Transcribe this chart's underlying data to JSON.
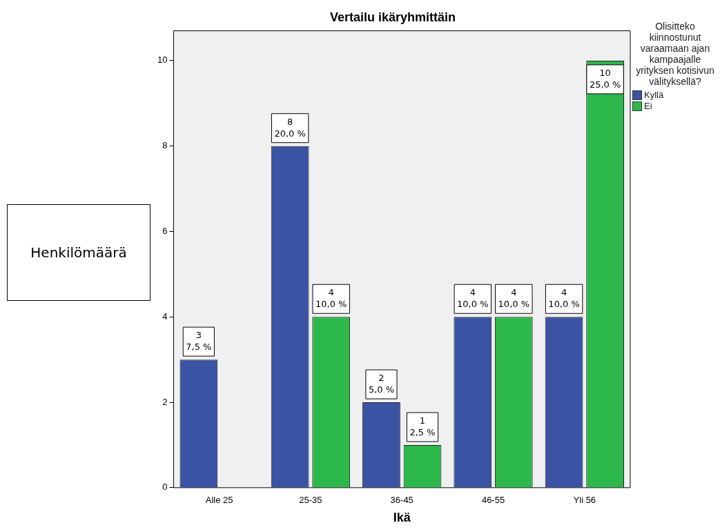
{
  "chart_data": {
    "type": "bar",
    "title": "Vertailu ikäryhmittäin",
    "xlabel": "Ikä",
    "ylabel": "Henkilömäärä",
    "legend_title": "Olisitteko kiinnostunut varaamaan ajan kampaajalle yrityksen kotisivun välityksellä?",
    "legend": "right",
    "grid": false,
    "categories": [
      "Alle 25",
      "25-35",
      "36-45",
      "46-55",
      "Yli 56"
    ],
    "ylim": [
      0,
      10.7
    ],
    "yticks": [
      0,
      2,
      4,
      6,
      8,
      10
    ],
    "series": [
      {
        "name": "Kyllä",
        "color": "#3a53a4",
        "values": [
          3,
          8,
          2,
          4,
          4
        ],
        "value_labels": [
          "3\n7,5 %",
          "8\n20,0 %",
          "2\n5,0 %",
          "4\n10,0 %",
          "4\n10,0 %"
        ]
      },
      {
        "name": "Ei",
        "color": "#2db84b",
        "values": [
          0,
          4,
          1,
          4,
          10
        ],
        "value_labels": [
          null,
          "4\n10,0 %",
          "1\n2,5 %",
          "4\n10,0 %",
          "10\n25,0 %"
        ]
      }
    ]
  }
}
